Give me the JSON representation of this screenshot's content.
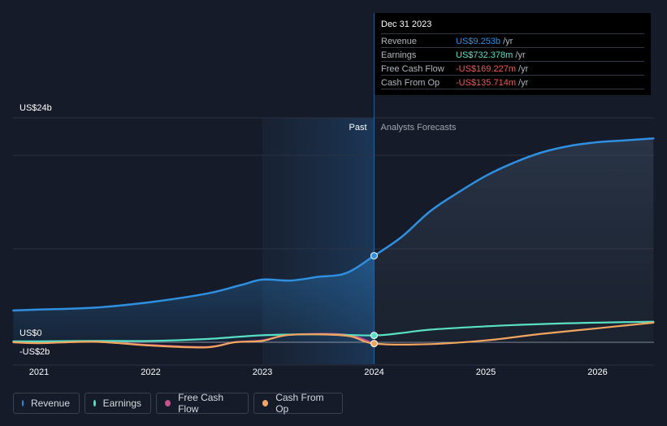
{
  "chart_data": {
    "type": "area",
    "y_unit": "US$ billions",
    "ylim": [
      -2,
      24
    ],
    "y_tick_labels": [
      {
        "value": 24,
        "label": "US$24b"
      },
      {
        "value": 0,
        "label": "US$0"
      },
      {
        "value": -2,
        "label": "-US$2b"
      }
    ],
    "x_ticks": [
      {
        "x": 2021,
        "label": "2021"
      },
      {
        "x": 2022,
        "label": "2022"
      },
      {
        "x": 2023,
        "label": "2023"
      },
      {
        "x": 2024,
        "label": "2024"
      },
      {
        "x": 2025,
        "label": "2025"
      },
      {
        "x": 2026,
        "label": "2026"
      }
    ],
    "xlim": [
      2020.77,
      2026.5
    ],
    "past_label": "Past",
    "forecast_label": "Analysts Forecasts",
    "divider_x": 2024.0,
    "past_shade_start": 2023.0,
    "grid": true,
    "series": [
      {
        "name": "Revenue",
        "color": "#2f8fe0",
        "area": true,
        "points": [
          [
            2020.77,
            3.4
          ],
          [
            2021.0,
            3.5
          ],
          [
            2021.5,
            3.7
          ],
          [
            2022.0,
            4.3
          ],
          [
            2022.5,
            5.2
          ],
          [
            2022.8,
            6.1
          ],
          [
            2023.0,
            6.7
          ],
          [
            2023.25,
            6.6
          ],
          [
            2023.5,
            7.0
          ],
          [
            2023.75,
            7.4
          ],
          [
            2024.0,
            9.25
          ],
          [
            2024.25,
            11.3
          ],
          [
            2024.5,
            14.0
          ],
          [
            2024.75,
            16.0
          ],
          [
            2025.0,
            17.8
          ],
          [
            2025.25,
            19.2
          ],
          [
            2025.5,
            20.3
          ],
          [
            2025.75,
            21.0
          ],
          [
            2026.0,
            21.4
          ],
          [
            2026.25,
            21.6
          ],
          [
            2026.5,
            21.8
          ]
        ]
      },
      {
        "name": "Earnings",
        "color": "#58e0c4",
        "area": false,
        "points": [
          [
            2020.77,
            0.1
          ],
          [
            2021.0,
            0.1
          ],
          [
            2021.5,
            0.15
          ],
          [
            2022.0,
            0.15
          ],
          [
            2022.5,
            0.35
          ],
          [
            2023.0,
            0.75
          ],
          [
            2023.5,
            0.85
          ],
          [
            2024.0,
            0.73
          ],
          [
            2024.25,
            1.0
          ],
          [
            2024.5,
            1.35
          ],
          [
            2025.0,
            1.7
          ],
          [
            2025.5,
            1.95
          ],
          [
            2026.0,
            2.1
          ],
          [
            2026.5,
            2.2
          ]
        ]
      },
      {
        "name": "Free Cash Flow",
        "color": "#c7518e",
        "area": false,
        "points": [
          [
            2020.77,
            0.0
          ],
          [
            2021.0,
            -0.05
          ],
          [
            2021.5,
            0.05
          ],
          [
            2022.0,
            -0.3
          ],
          [
            2022.5,
            -0.5
          ],
          [
            2022.75,
            0.0
          ],
          [
            2023.0,
            0.2
          ],
          [
            2023.25,
            0.8
          ],
          [
            2023.75,
            0.8
          ],
          [
            2024.0,
            -0.17
          ]
        ]
      },
      {
        "name": "Cash From Op",
        "color": "#f2a55f",
        "area": false,
        "points": [
          [
            2020.77,
            0.0
          ],
          [
            2021.0,
            -0.1
          ],
          [
            2021.5,
            0.05
          ],
          [
            2022.0,
            -0.35
          ],
          [
            2022.5,
            -0.55
          ],
          [
            2022.75,
            0.0
          ],
          [
            2023.0,
            0.15
          ],
          [
            2023.25,
            0.8
          ],
          [
            2023.75,
            0.7
          ],
          [
            2024.0,
            -0.14
          ],
          [
            2024.5,
            -0.2
          ],
          [
            2025.0,
            0.2
          ],
          [
            2025.5,
            0.9
          ],
          [
            2026.0,
            1.5
          ],
          [
            2026.5,
            2.1
          ]
        ]
      }
    ],
    "markers": [
      {
        "series": "Revenue",
        "x": 2024.0,
        "y": 9.253
      },
      {
        "series": "Earnings",
        "x": 2024.0,
        "y": 0.732
      },
      {
        "series": "Cash From Op",
        "x": 2024.0,
        "y": -0.136
      }
    ]
  },
  "tooltip": {
    "date": "Dec 31 2023",
    "unit": " /yr",
    "rows": [
      {
        "label": "Revenue",
        "value": "US$9.253b",
        "color": "#2f8fe0"
      },
      {
        "label": "Earnings",
        "value": "US$732.378m",
        "color": "#58e0c4"
      },
      {
        "label": "Free Cash Flow",
        "value": "-US$169.227m",
        "color": "#ef5a5a"
      },
      {
        "label": "Cash From Op",
        "value": "-US$135.714m",
        "color": "#ef5a5a"
      }
    ]
  },
  "legend": {
    "items": [
      {
        "label": "Revenue",
        "color": "#2f8fe0"
      },
      {
        "label": "Earnings",
        "color": "#58e0c4"
      },
      {
        "label": "Free Cash Flow",
        "color": "#c7518e"
      },
      {
        "label": "Cash From Op",
        "color": "#f2a55f"
      }
    ]
  }
}
